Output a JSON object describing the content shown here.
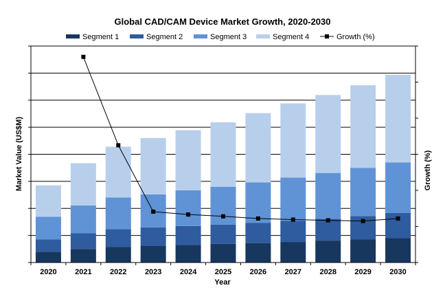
{
  "chart_data": {
    "type": "bar",
    "stacked": true,
    "title": "Global CAD/CAM Device Market Growth, 2020-2030",
    "xlabel": "Year",
    "ylabel": "Market Value (US$M)",
    "y2label": "Growth (%)",
    "categories": [
      "2020",
      "2021",
      "2022",
      "2023",
      "2024",
      "2025",
      "2026",
      "2027",
      "2028",
      "2029",
      "2030"
    ],
    "ylim": [
      0,
      8
    ],
    "y2lim": [
      0,
      60
    ],
    "grid": true,
    "legend_position": "top",
    "series": [
      {
        "name": "Segment 1",
        "color": "#17375e",
        "values": [
          0.4,
          0.5,
          0.58,
          0.61,
          0.65,
          0.69,
          0.72,
          0.76,
          0.81,
          0.85,
          0.9
        ]
      },
      {
        "name": "Segment 2",
        "color": "#2e5c9e",
        "values": [
          0.45,
          0.58,
          0.65,
          0.69,
          0.7,
          0.71,
          0.74,
          0.78,
          0.8,
          0.87,
          0.93
        ]
      },
      {
        "name": "Segment 3",
        "color": "#5f93d6",
        "values": [
          0.84,
          1.03,
          1.17,
          1.22,
          1.32,
          1.4,
          1.5,
          1.6,
          1.7,
          1.78,
          1.87
        ]
      },
      {
        "name": "Segment 4",
        "color": "#b8cfec",
        "values": [
          1.16,
          1.56,
          1.88,
          2.08,
          2.22,
          2.38,
          2.56,
          2.74,
          2.88,
          3.05,
          3.24
        ]
      }
    ],
    "line_series": {
      "name": "Growth (%)",
      "axis": "secondary",
      "color": "#000000",
      "x": [
        "2021",
        "2022",
        "2023",
        "2024",
        "2025",
        "2026",
        "2027",
        "2028",
        "2029",
        "2030"
      ],
      "values": [
        57.0,
        32.5,
        14.1,
        13.3,
        12.8,
        12.2,
        11.9,
        11.7,
        11.5,
        12.2
      ]
    }
  }
}
